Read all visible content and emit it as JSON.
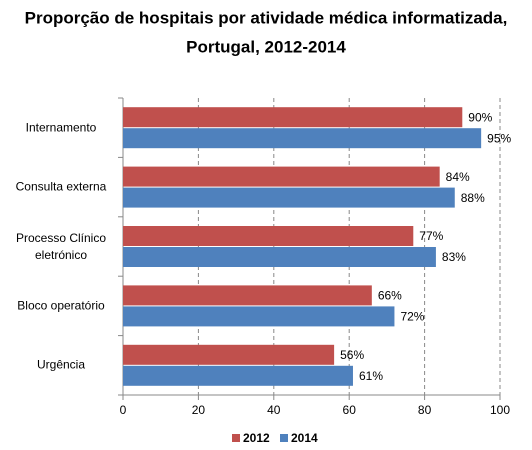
{
  "chart_data": {
    "type": "barh",
    "title": "Proporção de hospitais por atividade médica informatizada,",
    "subtitle": "Portugal, 2012-2014",
    "categories": [
      "Internamento",
      "Consulta externa",
      "Processo Clínico eletrónico",
      "Bloco operatório",
      "Urgência"
    ],
    "series": [
      {
        "name": "2012",
        "color": "#c0504d",
        "values": [
          90,
          84,
          77,
          66,
          56
        ],
        "value_labels": [
          "90%",
          "84%",
          "77%",
          "66%",
          "56%"
        ]
      },
      {
        "name": "2014",
        "color": "#4f81bd",
        "values": [
          95,
          88,
          83,
          72,
          61
        ],
        "value_labels": [
          "95%",
          "88%",
          "83%",
          "72%",
          "61%"
        ]
      }
    ],
    "xlim": [
      0,
      100
    ],
    "xticks": [
      0,
      20,
      40,
      60,
      80,
      100
    ],
    "grid": true,
    "legend": "bottom"
  }
}
